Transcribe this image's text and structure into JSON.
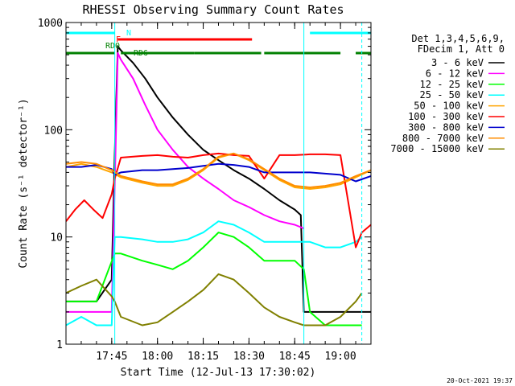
{
  "chart_data": {
    "type": "line",
    "title": "RHESSI Observing Summary Count Rates",
    "xlabel": "Start Time (12-Jul-13 17:30:02)",
    "ylabel": "Count Rate (s⁻¹ detector⁻¹)",
    "y_scale": "log",
    "ylim": [
      1,
      1000
    ],
    "xlim": [
      "17:30",
      "19:10"
    ],
    "x_ticks": [
      "17:45",
      "18:00",
      "18:15",
      "18:30",
      "18:45",
      "19:00"
    ],
    "y_ticks": [
      "1",
      "10",
      "100",
      "1000"
    ],
    "grid": false,
    "legend_position": "right",
    "legend_header": [
      "Det 1,3,4,5,6,9,",
      "FDecim 1, Att 0"
    ],
    "timestamp": "20-Oct-2021 19:37",
    "flag_bars": [
      {
        "label": "N",
        "color": "#00ffff",
        "segments": [
          [
            "17:30",
            "17:46"
          ],
          [
            "18:50",
            "19:10"
          ]
        ]
      },
      {
        "label": "F",
        "color": "#ff0000",
        "segments": [
          [
            "17:47",
            "18:31"
          ]
        ]
      },
      {
        "label": "RD0",
        "color": "#008000",
        "segments": []
      },
      {
        "label": "RD6",
        "color": "#008000",
        "segments": [
          [
            "17:30",
            "17:46"
          ],
          [
            "17:48",
            "18:12"
          ],
          [
            "18:12",
            "18:34"
          ],
          [
            "18:35",
            "19:00"
          ],
          [
            "19:05",
            "19:10"
          ]
        ]
      }
    ],
    "event_markers": [
      "17:46",
      "18:48",
      "19:07"
    ],
    "series": [
      {
        "name": "3 - 6 keV",
        "color": "#000000",
        "x": [
          "17:30",
          "17:40",
          "17:45",
          "17:46",
          "17:47",
          "17:48",
          "17:52",
          "17:56",
          "18:00",
          "18:05",
          "18:10",
          "18:15",
          "18:20",
          "18:25",
          "18:30",
          "18:35",
          "18:40",
          "18:45",
          "18:47",
          "18:48",
          "18:50",
          "18:55",
          "19:00",
          "19:05",
          "19:10"
        ],
        "values": [
          2.5,
          2.5,
          4,
          60,
          600,
          550,
          420,
          300,
          200,
          130,
          90,
          65,
          52,
          42,
          35,
          28,
          22,
          18,
          16,
          2,
          2,
          2,
          2,
          2,
          2
        ]
      },
      {
        "name": "6 - 12 keV",
        "color": "#ff00ff",
        "x": [
          "17:30",
          "17:45",
          "17:46",
          "17:47",
          "17:48",
          "17:52",
          "17:56",
          "18:00",
          "18:05",
          "18:10",
          "18:15",
          "18:20",
          "18:25",
          "18:30",
          "18:35",
          "18:40",
          "18:45",
          "18:48"
        ],
        "values": [
          2,
          2,
          30,
          520,
          450,
          300,
          170,
          100,
          65,
          45,
          35,
          28,
          22,
          19,
          16,
          14,
          13,
          12
        ]
      },
      {
        "name": "12 - 25 keV",
        "color": "#00ff00",
        "x": [
          "17:30",
          "17:40",
          "17:44",
          "17:46",
          "17:48",
          "17:55",
          "18:00",
          "18:05",
          "18:10",
          "18:15",
          "18:20",
          "18:25",
          "18:30",
          "18:35",
          "18:40",
          "18:45",
          "18:48",
          "18:50",
          "18:55",
          "19:00",
          "19:05",
          "19:07"
        ],
        "values": [
          2.5,
          2.5,
          5,
          7,
          7,
          6,
          5.5,
          5,
          6,
          8,
          11,
          10,
          8,
          6,
          6,
          6,
          5,
          2,
          1.5,
          1.5,
          1.5,
          1.5
        ]
      },
      {
        "name": "25 - 50 keV",
        "color": "#00ffff",
        "x": [
          "17:30",
          "17:35",
          "17:40",
          "17:45",
          "17:46",
          "17:48",
          "17:55",
          "18:00",
          "18:05",
          "18:10",
          "18:15",
          "18:20",
          "18:25",
          "18:30",
          "18:35",
          "18:40",
          "18:45",
          "18:48",
          "18:50",
          "18:55",
          "19:00",
          "19:05",
          "19:07"
        ],
        "values": [
          1.5,
          1.8,
          1.5,
          1.5,
          10,
          10,
          9.5,
          9,
          9,
          9.5,
          11,
          14,
          13,
          11,
          9,
          9,
          9,
          9,
          9,
          8,
          8,
          9,
          10
        ]
      },
      {
        "name": "50 - 100 keV",
        "color": "#ffa500",
        "x": [
          "17:30",
          "17:35",
          "17:40",
          "17:45",
          "17:48",
          "17:55",
          "18:00",
          "18:05",
          "18:10",
          "18:15",
          "18:20",
          "18:25",
          "18:30",
          "18:35",
          "18:40",
          "18:45",
          "18:50",
          "18:55",
          "19:00",
          "19:05",
          "19:10"
        ],
        "values": [
          45,
          48,
          45,
          40,
          36,
          32,
          30,
          30,
          34,
          42,
          55,
          60,
          52,
          42,
          34,
          29,
          28,
          29,
          31,
          36,
          42
        ]
      },
      {
        "name": "100 - 300 keV",
        "color": "#ff0000",
        "x": [
          "17:30",
          "17:33",
          "17:36",
          "17:39",
          "17:42",
          "17:45",
          "17:46",
          "17:48",
          "17:55",
          "18:00",
          "18:05",
          "18:10",
          "18:15",
          "18:20",
          "18:25",
          "18:30",
          "18:35",
          "18:40",
          "18:45",
          "18:50",
          "18:55",
          "19:00",
          "19:05",
          "19:07",
          "19:10"
        ],
        "values": [
          14,
          18,
          22,
          18,
          15,
          25,
          35,
          55,
          57,
          58,
          56,
          55,
          58,
          60,
          58,
          57,
          35,
          58,
          58,
          59,
          59,
          58,
          8,
          11,
          13
        ]
      },
      {
        "name": "300 - 800 keV",
        "color": "#0000cd",
        "x": [
          "17:30",
          "17:35",
          "17:40",
          "17:45",
          "17:46",
          "17:48",
          "17:55",
          "18:00",
          "18:05",
          "18:10",
          "18:15",
          "18:20",
          "18:25",
          "18:30",
          "18:35",
          "18:40",
          "18:45",
          "18:50",
          "18:55",
          "19:00",
          "19:05",
          "19:10"
        ],
        "values": [
          45,
          45,
          47,
          43,
          38,
          40,
          42,
          42,
          43,
          44,
          46,
          48,
          47,
          45,
          40,
          40,
          40,
          40,
          39,
          38,
          33,
          37
        ]
      },
      {
        "name": "800 - 7000 keV",
        "color": "#ff8c00",
        "x": [
          "17:30",
          "17:35",
          "17:40",
          "17:45",
          "17:48",
          "17:55",
          "18:00",
          "18:05",
          "18:10",
          "18:15",
          "18:20",
          "18:25",
          "18:30",
          "18:35",
          "18:40",
          "18:45",
          "18:50",
          "18:55",
          "19:00",
          "19:05",
          "19:10"
        ],
        "values": [
          48,
          50,
          48,
          42,
          37,
          33,
          31,
          31,
          35,
          43,
          56,
          60,
          53,
          43,
          35,
          30,
          29,
          30,
          32,
          37,
          42
        ]
      },
      {
        "name": "7000 - 15000 keV",
        "color": "#808000",
        "x": [
          "17:30",
          "17:35",
          "17:40",
          "17:45",
          "17:46",
          "17:48",
          "17:55",
          "18:00",
          "18:05",
          "18:10",
          "18:15",
          "18:20",
          "18:25",
          "18:30",
          "18:35",
          "18:40",
          "18:45",
          "18:48",
          "18:50",
          "18:55",
          "19:00",
          "19:05",
          "19:07"
        ],
        "values": [
          3,
          3.5,
          4,
          2.8,
          2.5,
          1.8,
          1.5,
          1.6,
          2,
          2.5,
          3.2,
          4.5,
          4,
          3,
          2.2,
          1.8,
          1.6,
          1.5,
          1.5,
          1.5,
          1.8,
          2.5,
          3
        ]
      }
    ]
  }
}
